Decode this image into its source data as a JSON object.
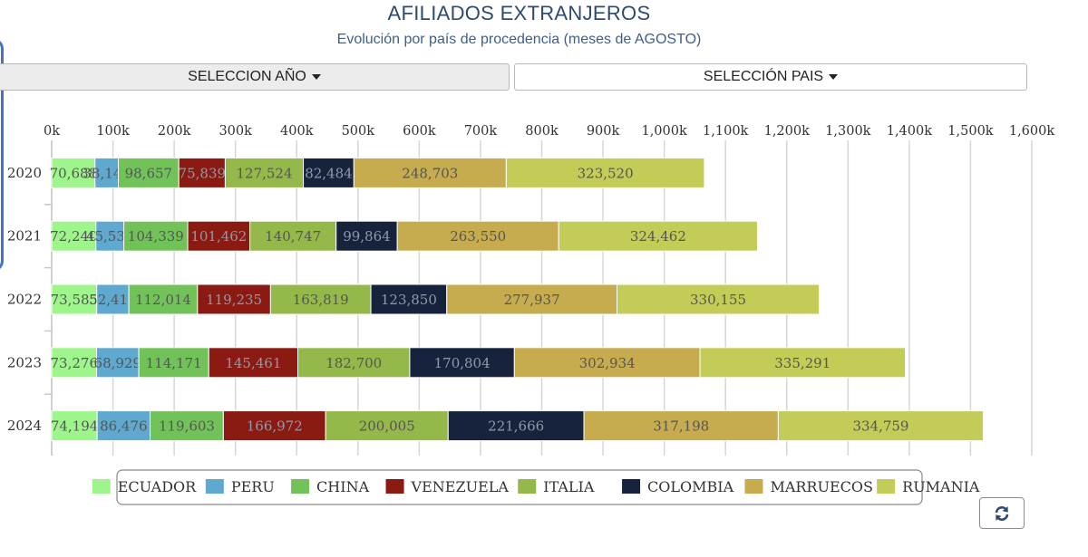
{
  "header": {
    "title": "AFILIADOS EXTRANJEROS",
    "subtitle": "Evolución por país de procedencia (meses de AGOSTO)"
  },
  "controls": {
    "year_label": "SELECCION AÑO",
    "country_label": "SELECCIÓN PAIS",
    "refresh_icon": "refresh-icon"
  },
  "colors": {
    "ECUADOR": "#9ef58c",
    "PERU": "#5fa8cf",
    "CHINA": "#72c25a",
    "VENEZUELA": "#8b1a12",
    "ITALIA": "#95b84a",
    "COLOMBIA": "#17233d",
    "MARRUECOS": "#c6ac4e",
    "RUMANIA": "#c4cc58"
  },
  "chart_data": {
    "type": "bar",
    "orientation": "horizontal",
    "stacked": true,
    "categories": [
      "2020",
      "2021",
      "2022",
      "2023",
      "2024"
    ],
    "series": [
      {
        "name": "ECUADOR",
        "values": [
          70688,
          72240,
          73585,
          73276,
          74194
        ],
        "labels": [
          "70,688",
          "72,240",
          "73,585",
          "73,276",
          "74,194"
        ]
      },
      {
        "name": "PERU",
        "values": [
          38141,
          45530,
          52411,
          68929,
          86476
        ],
        "labels": [
          "38,141",
          "45,530",
          "52,411",
          "68,929",
          "86,476"
        ]
      },
      {
        "name": "CHINA",
        "values": [
          98657,
          104339,
          112014,
          114171,
          119603
        ],
        "labels": [
          "98,657",
          "104,339",
          "112,014",
          "114,171",
          "119,603"
        ]
      },
      {
        "name": "VENEZUELA",
        "values": [
          75839,
          101462,
          119235,
          145461,
          166972
        ],
        "labels": [
          "75,839",
          "101,462",
          "119,235",
          "145,461",
          "166,972"
        ]
      },
      {
        "name": "ITALIA",
        "values": [
          127524,
          140747,
          163819,
          182700,
          200005
        ],
        "labels": [
          "127,524",
          "140,747",
          "163,819",
          "182,700",
          "200,005"
        ]
      },
      {
        "name": "COLOMBIA",
        "values": [
          82484,
          99864,
          123850,
          170804,
          221666
        ],
        "labels": [
          "82,484",
          "99,864",
          "123,850",
          "170,804",
          "221,666"
        ]
      },
      {
        "name": "MARRUECOS",
        "values": [
          248703,
          263550,
          277937,
          302934,
          317198
        ],
        "labels": [
          "248,703",
          "263,550",
          "277,937",
          "302,934",
          "317,198"
        ]
      },
      {
        "name": "RUMANIA",
        "values": [
          323520,
          324462,
          330155,
          335291,
          334759
        ],
        "labels": [
          "323,520",
          "324,462",
          "330,155",
          "335,291",
          "334,759"
        ]
      }
    ],
    "xlim": [
      0,
      1600000
    ],
    "tick_values": [
      0,
      100000,
      200000,
      300000,
      400000,
      500000,
      600000,
      700000,
      800000,
      900000,
      1000000,
      1100000,
      1200000,
      1300000,
      1400000,
      1500000,
      1600000
    ],
    "tick_labels": [
      "0k",
      "100k",
      "200k",
      "300k",
      "400k",
      "500k",
      "600k",
      "700k",
      "800k",
      "900k",
      "1,000k",
      "1,100k",
      "1,200k",
      "1,300k",
      "1,400k",
      "1,500k",
      "1,600k"
    ],
    "legend_position": "bottom",
    "grid": true
  }
}
